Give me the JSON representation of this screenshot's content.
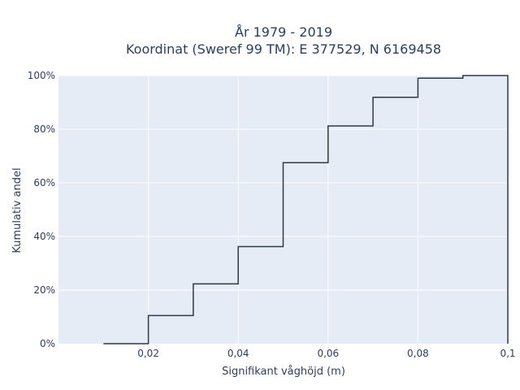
{
  "chart_data": {
    "type": "line",
    "title_line1": "År 1979 - 2019",
    "title_line2": "Koordinat (Sweref 99 TM): E 377529, N 6169458",
    "xlabel": "Signifikant våghöjd (m)",
    "ylabel": "Kumulativ andel",
    "xlim": [
      0,
      0.1
    ],
    "ylim": [
      0,
      100
    ],
    "x_ticks": [
      {
        "value": 0.02,
        "label": "0,02"
      },
      {
        "value": 0.04,
        "label": "0,04"
      },
      {
        "value": 0.06,
        "label": "0,06"
      },
      {
        "value": 0.08,
        "label": "0,08"
      },
      {
        "value": 0.1,
        "label": "0,1"
      }
    ],
    "y_ticks": [
      {
        "value": 0,
        "label": "0%"
      },
      {
        "value": 20,
        "label": "20%"
      },
      {
        "value": 40,
        "label": "40%"
      },
      {
        "value": 60,
        "label": "60%"
      },
      {
        "value": 80,
        "label": "80%"
      },
      {
        "value": 100,
        "label": "100%"
      }
    ],
    "grid": true,
    "line_color": "#2f3a45",
    "steps": [
      {
        "x0": 0.01,
        "x1": 0.02,
        "y": 0
      },
      {
        "x0": 0.02,
        "x1": 0.03,
        "y": 10.5
      },
      {
        "x0": 0.03,
        "x1": 0.04,
        "y": 22.3
      },
      {
        "x0": 0.04,
        "x1": 0.05,
        "y": 36.2
      },
      {
        "x0": 0.05,
        "x1": 0.06,
        "y": 67.5
      },
      {
        "x0": 0.06,
        "x1": 0.07,
        "y": 81.2
      },
      {
        "x0": 0.07,
        "x1": 0.08,
        "y": 91.9
      },
      {
        "x0": 0.08,
        "x1": 0.09,
        "y": 99.0
      },
      {
        "x0": 0.09,
        "x1": 0.1,
        "y": 100
      },
      {
        "x0": 0.1,
        "x1": 0.1,
        "y": 0
      }
    ]
  }
}
